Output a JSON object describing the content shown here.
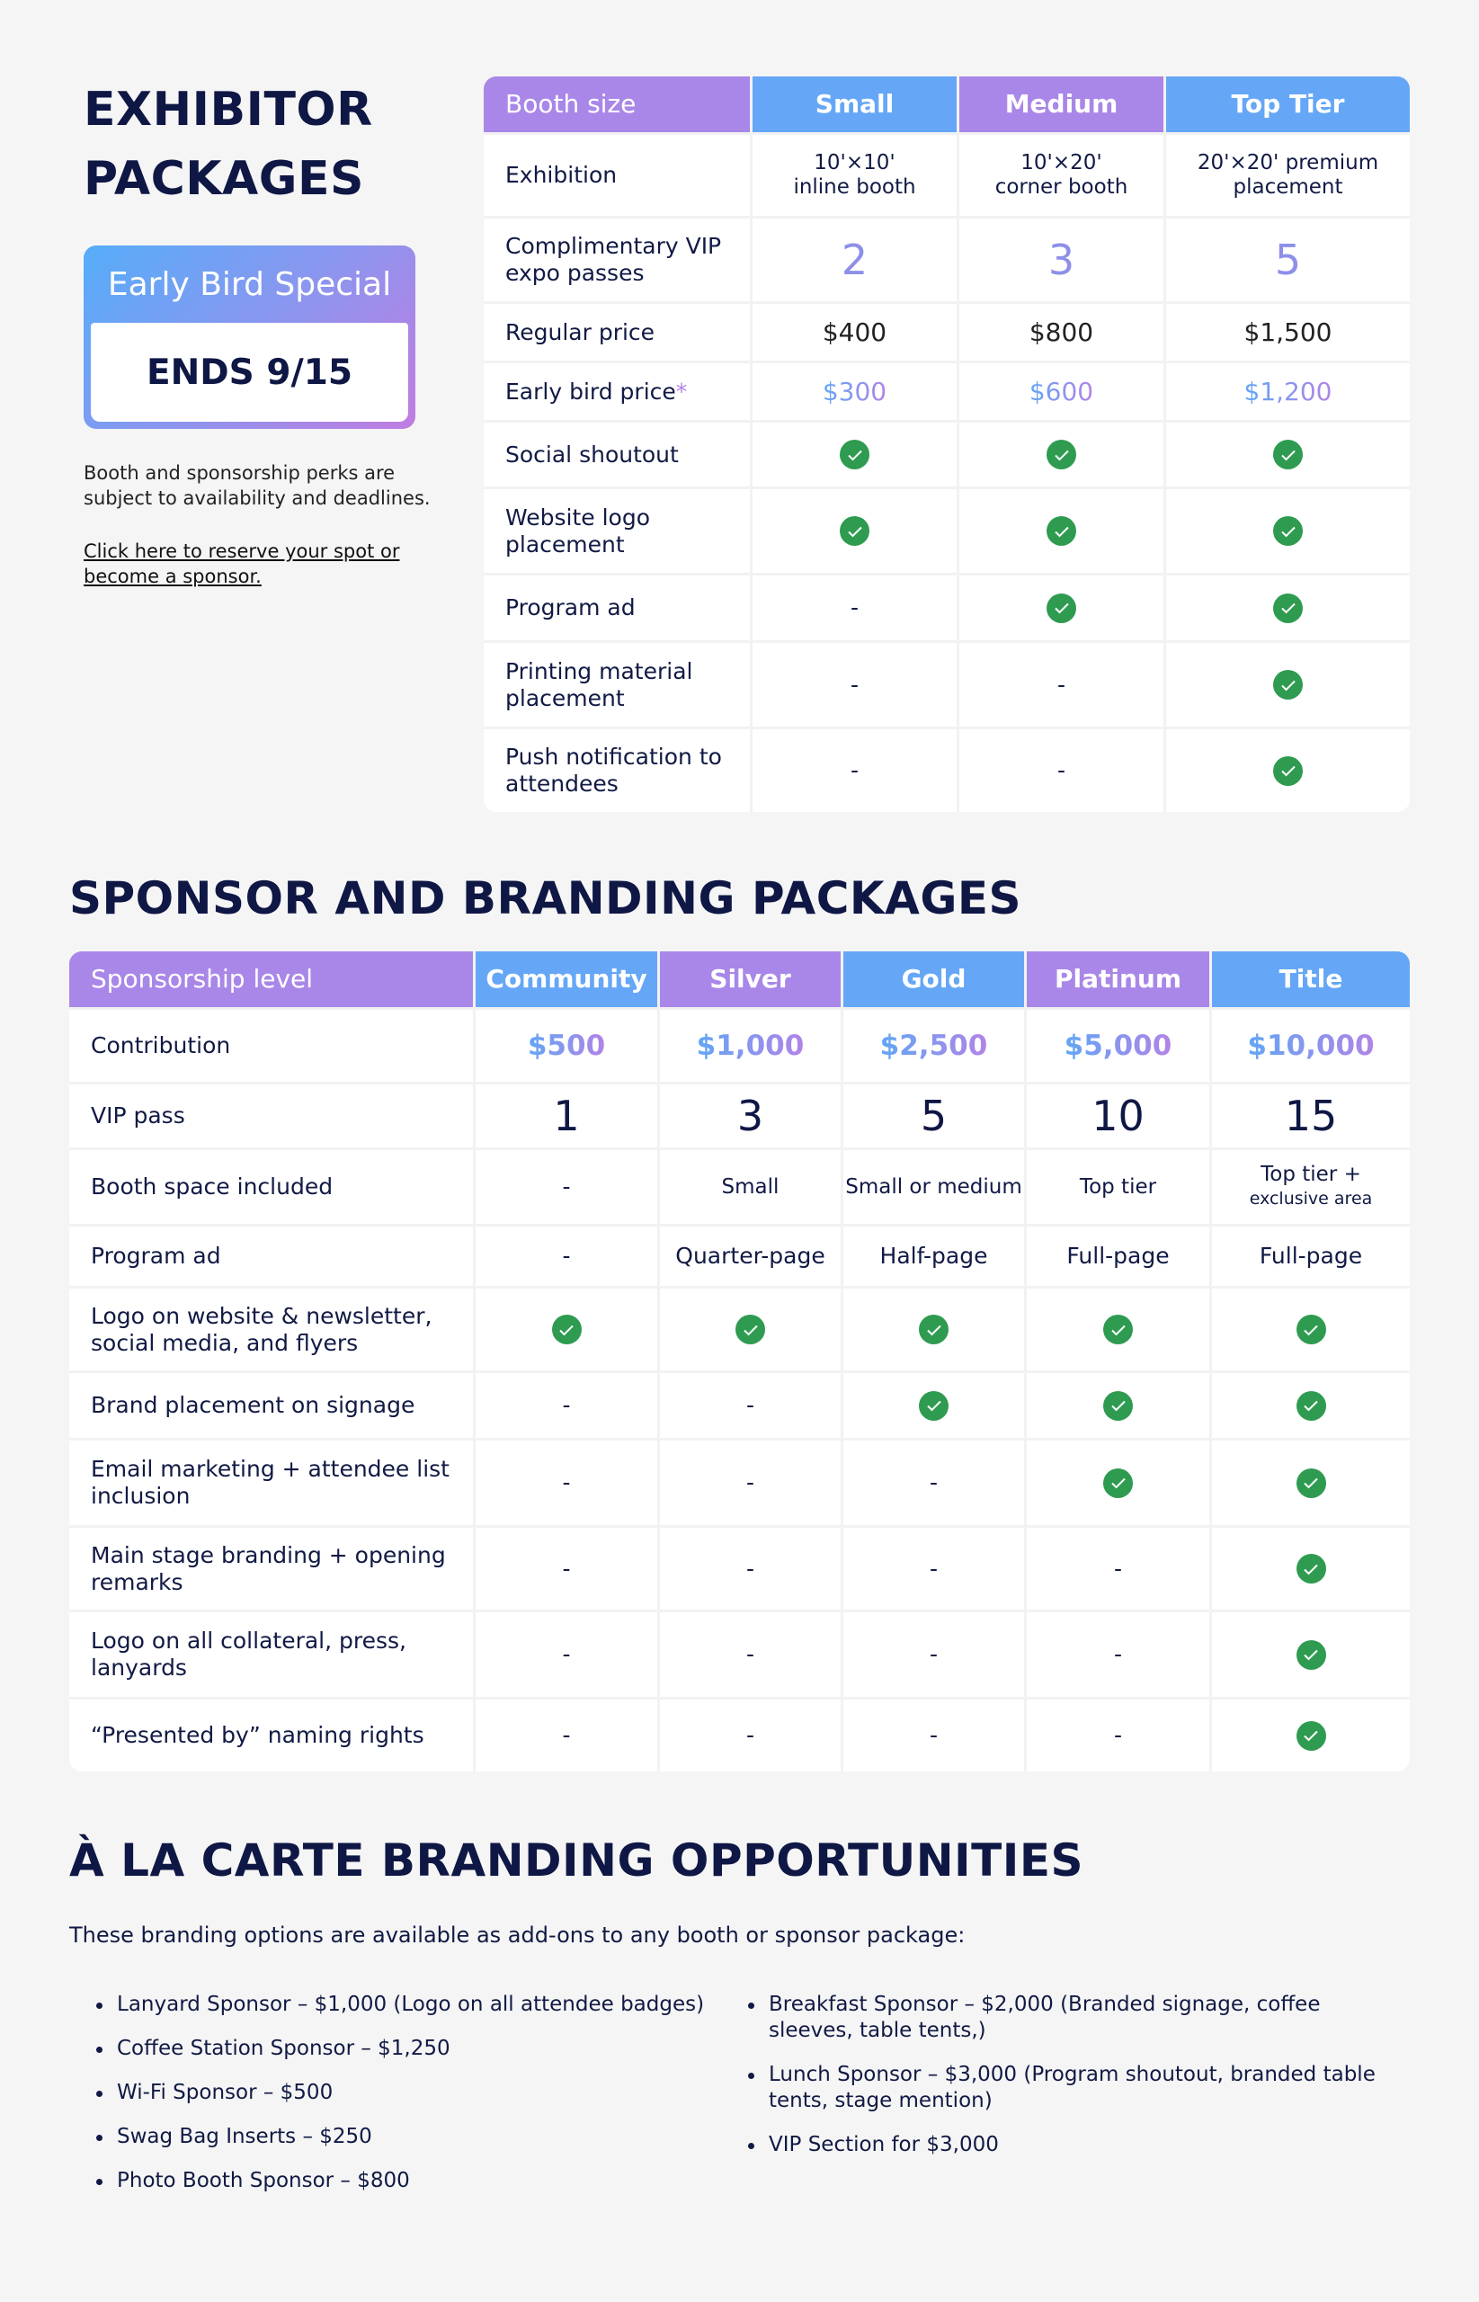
{
  "exhibitor": {
    "title_line1": "EXHIBITOR",
    "title_line2": "PACKAGES",
    "early_bird": {
      "title": "Early Bird Special",
      "ends": "ENDS 9/15"
    },
    "note": "Booth and sponsorship perks are subject to availability and deadlines.",
    "link": "Click here to reserve your spot or become a sponsor.",
    "table": {
      "headers": [
        "Booth size",
        "Small",
        "Medium",
        "Top Tier"
      ],
      "rows": [
        {
          "label": "Exhibition",
          "values": [
            [
              "10'×10'",
              "inline booth"
            ],
            [
              "10'×20'",
              "corner booth"
            ],
            [
              "20'×20' premium",
              "placement"
            ]
          ]
        },
        {
          "label": "Complimentary VIP expo passes",
          "values": [
            "2",
            "3",
            "5"
          ]
        },
        {
          "label": "Regular price",
          "values": [
            "$400",
            "$800",
            "$1,500"
          ]
        },
        {
          "label": "Early bird price",
          "asterisk": "*",
          "values": [
            "$300",
            "$600",
            "$1,200"
          ]
        },
        {
          "label": "Social shoutout",
          "values": [
            "check",
            "check",
            "check"
          ]
        },
        {
          "label": "Website logo placement",
          "values": [
            "check",
            "check",
            "check"
          ]
        },
        {
          "label": "Program ad",
          "values": [
            "-",
            "check",
            "check"
          ]
        },
        {
          "label": "Printing material placement",
          "values": [
            "-",
            "-",
            "check"
          ]
        },
        {
          "label": "Push notification to attendees",
          "values": [
            "-",
            "-",
            "check"
          ]
        }
      ]
    }
  },
  "sponsor": {
    "title": "SPONSOR AND BRANDING PACKAGES",
    "table": {
      "headers": [
        "Sponsorship level",
        "Community",
        "Silver",
        "Gold",
        "Platinum",
        "Title"
      ],
      "rows": [
        {
          "label": "Contribution",
          "values": [
            "$500",
            "$1,000",
            "$2,500",
            "$5,000",
            "$10,000"
          ]
        },
        {
          "label": "VIP pass",
          "values": [
            "1",
            "3",
            "5",
            "10",
            "15"
          ]
        },
        {
          "label": "Booth space included",
          "values": [
            "-",
            "Small",
            "Small or medium",
            "Top tier",
            [
              "Top tier +",
              "exclusive area"
            ]
          ]
        },
        {
          "label": "Program ad",
          "values": [
            "-",
            "Quarter-page",
            "Half-page",
            "Full-page",
            "Full-page"
          ]
        },
        {
          "label": "Logo on website & newsletter, social media, and flyers",
          "values": [
            "check",
            "check",
            "check",
            "check",
            "check"
          ]
        },
        {
          "label": "Brand placement on signage",
          "values": [
            "-",
            "-",
            "check",
            "check",
            "check"
          ]
        },
        {
          "label": "Email marketing + attendee list inclusion",
          "values": [
            "-",
            "-",
            "-",
            "check",
            "check"
          ]
        },
        {
          "label": "Main stage branding + opening remarks",
          "values": [
            "-",
            "-",
            "-",
            "-",
            "check"
          ]
        },
        {
          "label": "Logo on all collateral, press, lanyards",
          "values": [
            "-",
            "-",
            "-",
            "-",
            "check"
          ]
        },
        {
          "label": "“Presented by” naming rights",
          "values": [
            "-",
            "-",
            "-",
            "-",
            "check"
          ]
        }
      ]
    }
  },
  "alacarte": {
    "title": "À LA CARTE BRANDING OPPORTUNITIES",
    "intro": "These branding options are available as add-ons to any booth or sponsor package:",
    "left": [
      "Lanyard Sponsor – $1,000 (Logo on all attendee badges)",
      "Coffee Station Sponsor – $1,250",
      "Wi-Fi Sponsor – $500",
      "Swag Bag Inserts – $250",
      "Photo Booth Sponsor – $800"
    ],
    "right": [
      "Breakfast Sponsor – $2,000 (Branded signage, coffee sleeves, table tents,)",
      "Lunch Sponsor – $3,000 (Program shoutout, branded table tents, stage mention)",
      "VIP Section for $3,000"
    ]
  },
  "colors": {
    "header_purple": "#a987e8",
    "header_blue": "#65a7f6",
    "check_green": "#2e9b50",
    "title_navy": "#0f1745"
  }
}
